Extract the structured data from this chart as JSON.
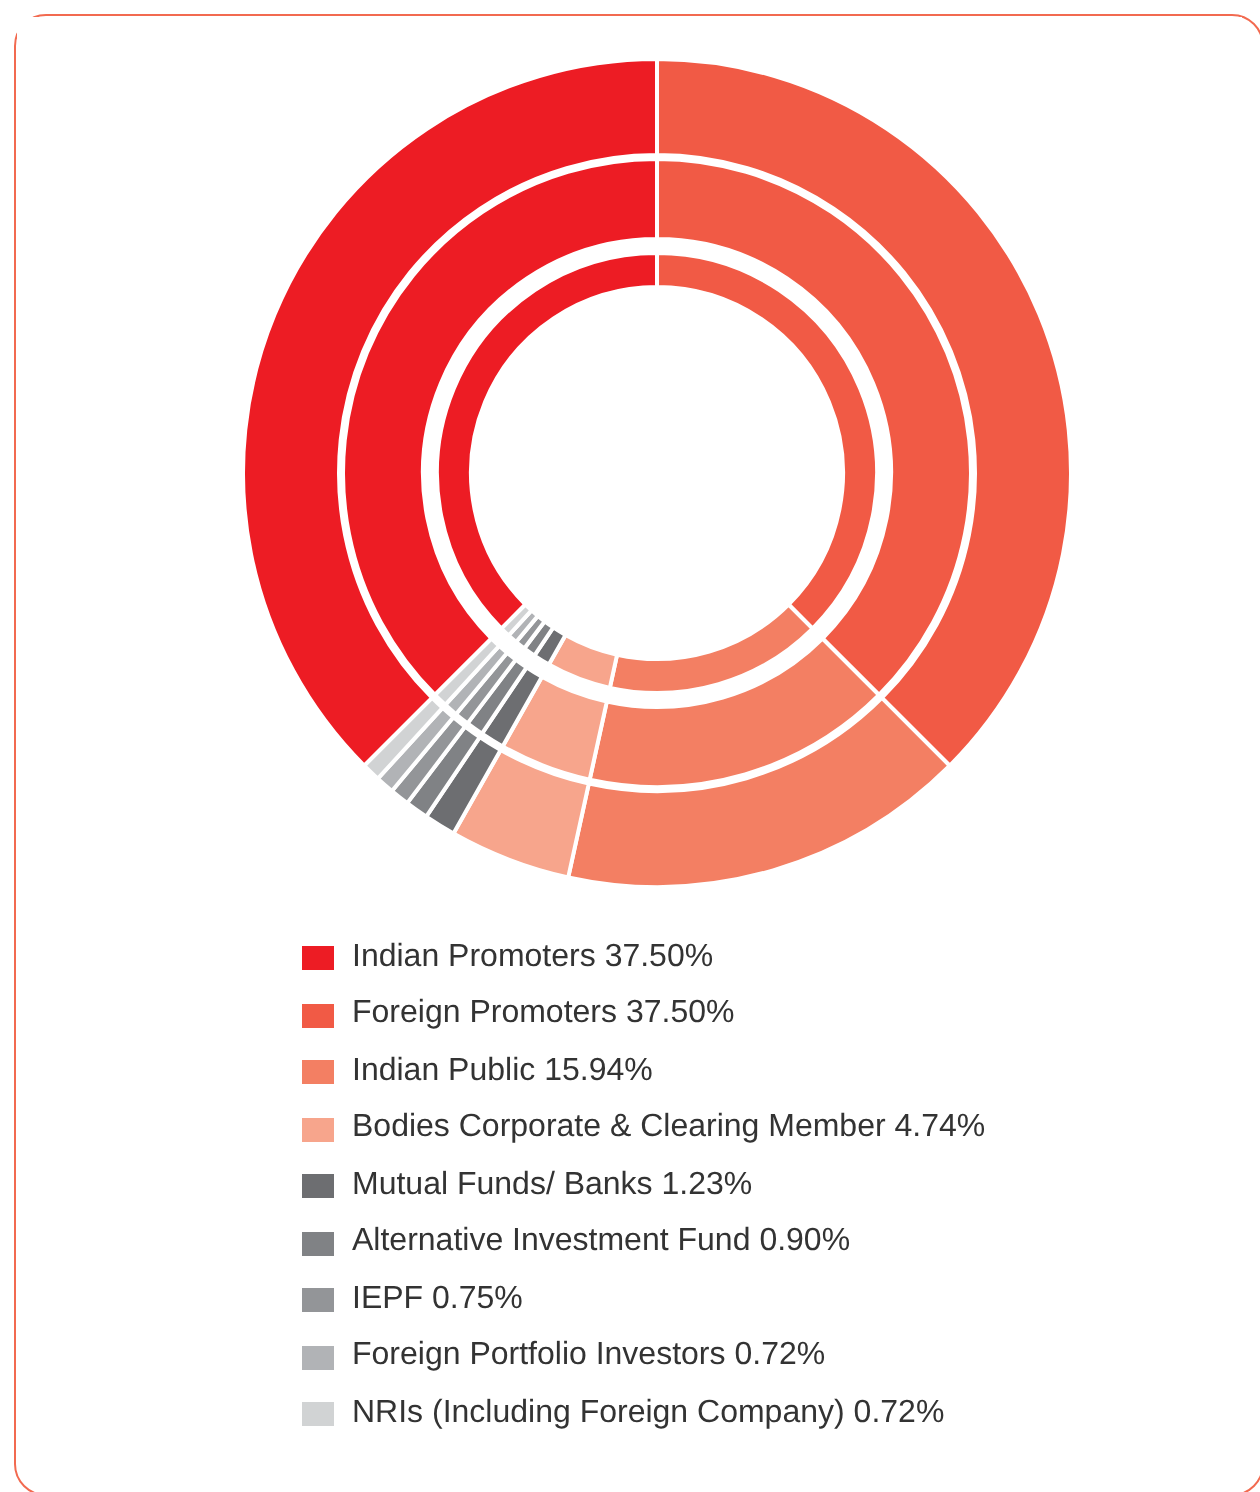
{
  "chart_data": {
    "type": "donut",
    "categories": [
      "Indian Promoters",
      "Foreign Promoters",
      "Indian Public",
      "Bodies Corporate & Clearing Member",
      "Mutual Funds/ Banks",
      "Alternative Investment Fund",
      "IEPF",
      "Foreign Portfolio Investors",
      "NRIs (Including Foreign Company)"
    ],
    "series": [
      {
        "values": [
          37.5,
          37.5,
          15.94,
          4.74,
          1.23,
          0.9,
          0.75,
          0.72,
          0.72
        ]
      },
      {
        "values": [
          37.5,
          37.5,
          15.94,
          4.74,
          1.23,
          0.9,
          0.75,
          0.72,
          0.72
        ]
      },
      {
        "values": [
          37.5,
          37.5,
          15.94,
          4.74,
          1.23,
          0.9,
          0.75,
          0.72,
          0.72
        ]
      }
    ],
    "value_labels": [
      "37.50%",
      "37.50%",
      "15.94%",
      "4.74%",
      "1.23%",
      "0.90%",
      "0.75%",
      "0.72%",
      "0.72%"
    ],
    "colors": [
      "#ed1c24",
      "#f15a45",
      "#f37f63",
      "#f7a58c",
      "#6d6e71",
      "#808285",
      "#939598",
      "#b1b3b6",
      "#d1d3d4"
    ],
    "legend": "bottom"
  }
}
